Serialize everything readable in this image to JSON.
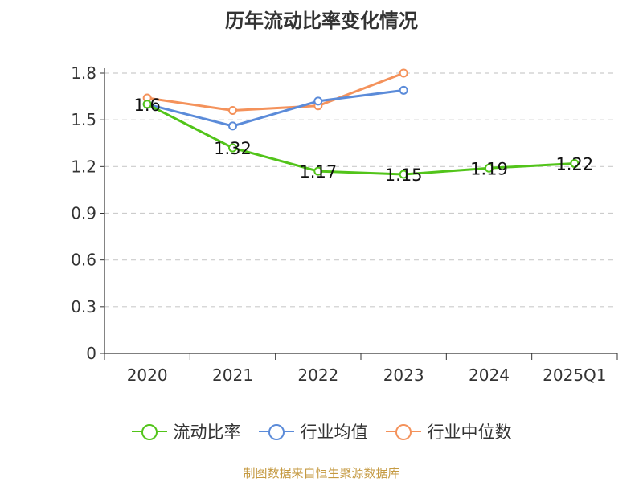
{
  "chart_data": {
    "type": "line",
    "title": "历年流动比率变化情况",
    "categories": [
      "2020",
      "2021",
      "2022",
      "2023",
      "2024",
      "2025Q1"
    ],
    "ylim": [
      0,
      1.8
    ],
    "yticks": [
      "0",
      "0.3",
      "0.6",
      "0.9",
      "1.2",
      "1.5",
      "1.8"
    ],
    "grid": true,
    "legend_position": "bottom",
    "series": [
      {
        "name": "流动比率",
        "color": "#52c41a",
        "values": [
          1.6,
          1.32,
          1.17,
          1.15,
          1.19,
          1.22
        ],
        "data_labels": [
          "1.6",
          "1.32",
          "1.17",
          "1.15",
          "1.19",
          "1.22"
        ]
      },
      {
        "name": "行业均值",
        "color": "#5b8bd9",
        "values": [
          1.6,
          1.46,
          1.62,
          1.69,
          null,
          null
        ]
      },
      {
        "name": "行业中位数",
        "color": "#f4925b",
        "values": [
          1.64,
          1.56,
          1.59,
          1.8,
          null,
          null
        ]
      }
    ]
  },
  "source": "制图数据来自恒生聚源数据库"
}
